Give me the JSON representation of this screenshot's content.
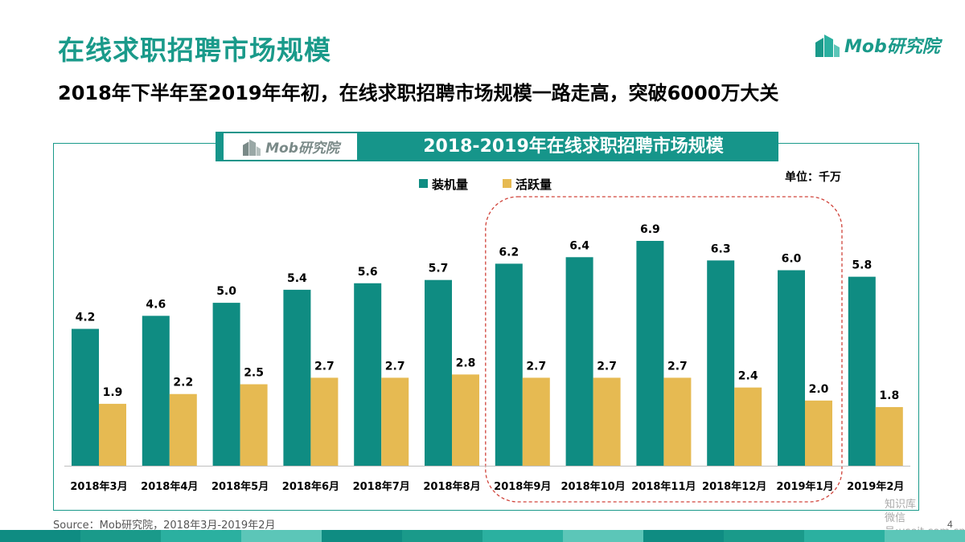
{
  "header": {
    "page_title": "在线求职招聘市场规模",
    "subtitle": "2018年下半年至2019年年初，在线求职招聘市场规模一路走高，突破6000万大关",
    "logo_text": "Mob研究院"
  },
  "chart_header": {
    "logo_text": "Mob研究院",
    "title": "2018-2019年在线求职招聘市场规模"
  },
  "unit_label": "单位：千万",
  "chart_data": {
    "type": "bar",
    "title": "2018-2019年在线求职招聘市场规模",
    "categories": [
      "2018年3月",
      "2018年4月",
      "2018年5月",
      "2018年6月",
      "2018年7月",
      "2018年8月",
      "2018年9月",
      "2018年10月",
      "2018年11月",
      "2018年12月",
      "2019年1月",
      "2019年2月"
    ],
    "series": [
      {
        "name": "装机量",
        "color": "#0f8c82",
        "values": [
          4.2,
          4.6,
          5.0,
          5.4,
          5.6,
          5.7,
          6.2,
          6.4,
          6.9,
          6.3,
          6.0,
          5.8
        ]
      },
      {
        "name": "活跃量",
        "color": "#e6ba52",
        "values": [
          1.9,
          2.2,
          2.5,
          2.7,
          2.7,
          2.8,
          2.7,
          2.7,
          2.7,
          2.4,
          2.0,
          1.8
        ]
      }
    ],
    "value_labels": {
      "装机量": [
        "4.2",
        "4.6",
        "5.0",
        "5.4",
        "5.6",
        "5.7",
        "6.2",
        "6.4",
        "6.9",
        "6.3",
        "6.0",
        "5.8"
      ],
      "活跃量": [
        "1.9",
        "2.2",
        "2.5",
        "2.7",
        "2.7",
        "2.8",
        "2.7",
        "2.7",
        "2.7",
        "2.4",
        "2.0",
        "1.8"
      ]
    },
    "highlight_range": [
      "2018年9月",
      "2019年1月"
    ],
    "ylim": [
      0,
      7
    ],
    "xlabel": "",
    "ylabel": "",
    "legend_position": "top-center",
    "grid": false
  },
  "footer": {
    "source": "Source：Mob研究院，2018年3月-2019年2月",
    "page_number": "4",
    "watermark_line1": "知识库",
    "watermark_line2": "微信号:useit.com.cn"
  },
  "colors": {
    "accent": "#1a9a8a",
    "band": [
      "#0f8c82",
      "#1a9a8a",
      "#2bb0a0",
      "#5cc6b8",
      "#0f8c82",
      "#1a9a8a",
      "#2bb0a0",
      "#5cc6b8",
      "#0f8c82",
      "#1a9a8a",
      "#2bb0a0",
      "#5cc6b8"
    ]
  }
}
